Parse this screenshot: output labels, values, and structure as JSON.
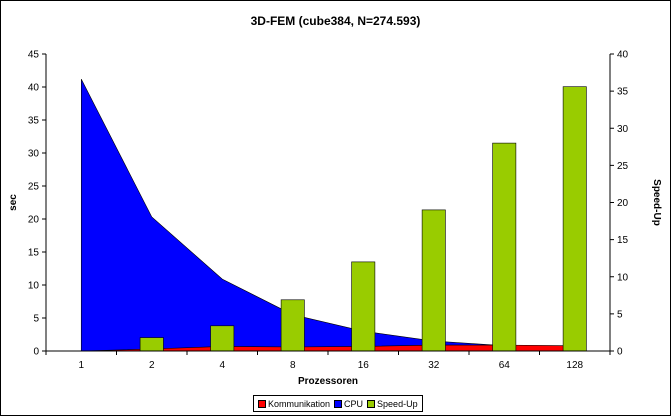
{
  "chart_data": {
    "type": "bar",
    "title": "3D-FEM (cube384, N=274.593)",
    "xlabel": "Prozessoren",
    "ylabel": "sec",
    "y2label": "Speed-Up",
    "categories": [
      "1",
      "2",
      "4",
      "8",
      "16",
      "32",
      "64",
      "128"
    ],
    "ylim": [
      0,
      45
    ],
    "y2lim": [
      0,
      40
    ],
    "yticks": [
      0,
      5,
      10,
      15,
      20,
      25,
      30,
      35,
      40,
      45
    ],
    "y2ticks": [
      0,
      5,
      10,
      15,
      20,
      25,
      30,
      35,
      40
    ],
    "legend_position": "bottom",
    "series": [
      {
        "name": "Kommunikation",
        "kind": "area",
        "axis": "primary",
        "color": "#ff0000",
        "values": [
          0,
          0.3,
          0.7,
          0.6,
          0.7,
          0.9,
          0.9,
          0.8
        ]
      },
      {
        "name": "CPU",
        "kind": "area",
        "axis": "primary",
        "color": "#0000ff",
        "values": [
          41.2,
          20.3,
          10.9,
          5.5,
          3.0,
          1.5,
          0.8,
          0.4
        ]
      },
      {
        "name": "Speed-Up",
        "kind": "bar",
        "axis": "secondary",
        "color": "#99cc00",
        "values": [
          0,
          1.8,
          3.4,
          6.9,
          12.0,
          19.0,
          28.0,
          35.6
        ]
      }
    ]
  }
}
